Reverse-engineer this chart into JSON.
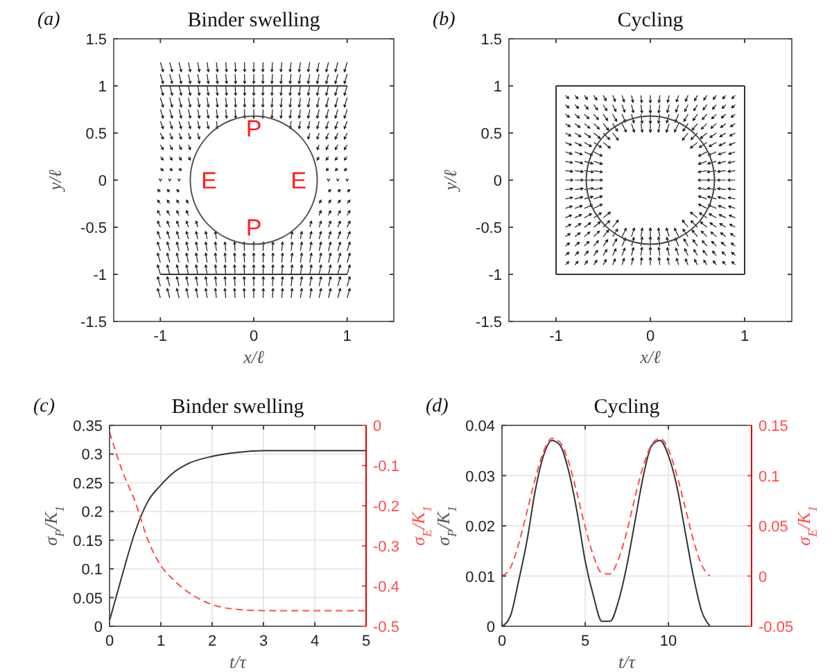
{
  "chart_data": [
    {
      "type": "line",
      "title": "Binder swelling",
      "xlabel": "x/ℓ",
      "ylabel": "y/ℓ",
      "xlim": [
        -1.5,
        1.5
      ],
      "ylim": [
        -1.5,
        1.5
      ],
      "xticks": [
        -1,
        0,
        1
      ],
      "yticks": [
        -1.5,
        -1,
        -0.5,
        0,
        0.5,
        1,
        1.5
      ],
      "grid": false,
      "annotations": [
        "(a)",
        "P",
        "E",
        "E",
        "P"
      ],
      "series": [
        {
          "color": "#333333",
          "x": [
            -1,
            1
          ],
          "values": [
            1,
            1
          ]
        },
        {
          "color": "#333333",
          "x": [
            -1,
            1
          ],
          "values": [
            -1,
            -1
          ]
        }
      ]
    },
    {
      "type": "line",
      "title": "Cycling",
      "xlabel": "x/ℓ",
      "ylabel": "y/ℓ",
      "xlim": [
        -1.5,
        1.5
      ],
      "ylim": [
        -1.5,
        1.5
      ],
      "xticks": [
        -1,
        0,
        1
      ],
      "yticks": [
        -1.5,
        -1,
        -0.5,
        0,
        0.5,
        1,
        1.5
      ],
      "grid": false,
      "annotations": [
        "(b)"
      ],
      "series": [
        {
          "color": "#333333",
          "x": [
            -1,
            1
          ],
          "values": [
            1,
            1
          ]
        },
        {
          "color": "#333333",
          "x": [
            -1,
            1
          ],
          "values": [
            -1,
            -1
          ]
        },
        {
          "color": "#333333",
          "x": [
            -1,
            -1
          ],
          "values": [
            -1,
            1
          ]
        },
        {
          "color": "#333333",
          "x": [
            1,
            1
          ],
          "values": [
            -1,
            1
          ]
        }
      ]
    },
    {
      "type": "line",
      "title": "Binder swelling",
      "xlabel": "t/τ",
      "ylabel": "σ$_{P}$/K$_{1}$",
      "y2label": "σ$_{E}$/K$_{1}$",
      "xlim": [
        0,
        5
      ],
      "ylim": [
        0,
        0.35
      ],
      "y2lim": [
        -0.5,
        0
      ],
      "xticks": [
        0,
        1,
        2,
        3,
        4,
        5
      ],
      "yticks": [
        0,
        0.05,
        0.1,
        0.15,
        0.2,
        0.25,
        0.3,
        0.35
      ],
      "y2ticks": [
        -0.5,
        -0.4,
        -0.3,
        -0.2,
        -0.1,
        0
      ],
      "grid": true,
      "annotations": [
        "(c)"
      ],
      "series": [
        {
          "color": "#333333",
          "x": [
            0,
            0.25,
            0.5,
            0.75,
            1,
            1.25,
            1.5,
            2,
            2.5,
            3,
            3.5,
            4,
            4.5,
            5
          ],
          "values": [
            0.01,
            0.09,
            0.165,
            0.218,
            0.246,
            0.268,
            0.282,
            0.296,
            0.303,
            0.306,
            0.306,
            0.306,
            0.306,
            0.306
          ]
        },
        {
          "color": "#ff4d4d",
          "axis": "y2",
          "line_style": "dashed",
          "x": [
            0,
            0.25,
            0.5,
            0.75,
            1,
            1.25,
            1.5,
            2,
            2.5,
            3,
            3.5,
            4,
            4.5,
            5
          ],
          "values": [
            -0.017,
            -0.114,
            -0.19,
            -0.286,
            -0.349,
            -0.385,
            -0.412,
            -0.446,
            -0.458,
            -0.461,
            -0.461,
            -0.461,
            -0.461,
            -0.461
          ]
        }
      ]
    },
    {
      "type": "line",
      "title": "Cycling",
      "xlabel": "t/τ",
      "ylabel": "σ$_{P}$/K$_{1}$",
      "y2label": "σ$_{E}$/K$_{1}$",
      "xlim": [
        0,
        15
      ],
      "ylim": [
        0,
        0.04
      ],
      "y2lim": [
        -0.05,
        0.15
      ],
      "xticks": [
        0,
        5,
        10
      ],
      "yticks": [
        0,
        0.01,
        0.02,
        0.03,
        0.04
      ],
      "y2ticks": [
        -0.05,
        0,
        0.05,
        0.1,
        0.15
      ],
      "grid": true,
      "annotations": [
        "(d)"
      ],
      "series": [
        {
          "color": "#333333",
          "x": [
            0,
            0.5,
            1,
            1.5,
            2,
            2.5,
            3,
            3.5,
            4,
            4.5,
            5,
            5.5,
            6,
            6.5,
            7,
            7.5,
            8,
            8.5,
            9,
            9.5,
            10,
            10.5,
            11,
            11.5,
            12,
            12.5
          ],
          "values": [
            0,
            0.002,
            0.009,
            0.017,
            0.027,
            0.034,
            0.037,
            0.036,
            0.031,
            0.023,
            0.013,
            0.006,
            0.001,
            0.001,
            0.005,
            0.012,
            0.021,
            0.03,
            0.036,
            0.037,
            0.034,
            0.028,
            0.019,
            0.01,
            0.003,
            0
          ]
        },
        {
          "color": "#ff4d4d",
          "axis": "y2",
          "line_style": "dashed",
          "x": [
            0,
            0.5,
            1,
            1.5,
            2,
            2.5,
            3,
            3.5,
            4,
            4.5,
            5,
            5.5,
            6,
            6.5,
            7,
            7.5,
            8,
            8.5,
            9,
            9.5,
            10,
            10.5,
            11,
            11.5,
            12,
            12.5
          ],
          "values": [
            0,
            0.008,
            0.032,
            0.064,
            0.097,
            0.124,
            0.137,
            0.133,
            0.114,
            0.083,
            0.049,
            0.02,
            0.003,
            0.002,
            0.017,
            0.044,
            0.079,
            0.11,
            0.131,
            0.137,
            0.126,
            0.101,
            0.069,
            0.036,
            0.011,
            0
          ]
        }
      ]
    }
  ]
}
